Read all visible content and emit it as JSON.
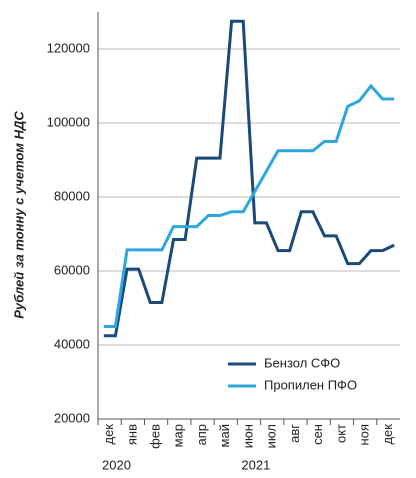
{
  "chart_data": {
    "type": "line",
    "y_label": "Рублей за тонну с учетом НДС",
    "categories": [
      "дек",
      null,
      "янв",
      null,
      "фев",
      null,
      "мар",
      null,
      "апр",
      null,
      "май",
      null,
      "июн",
      null,
      "июл",
      null,
      "авг",
      null,
      "сен",
      null,
      "окт",
      null,
      "ноя",
      null,
      "дек",
      null
    ],
    "years": [
      "2020",
      "2021"
    ],
    "series": [
      {
        "name": "Бензол СФО",
        "color": "#1b4a78",
        "values": [
          42500,
          42500,
          60500,
          60500,
          51500,
          51500,
          68500,
          68500,
          90500,
          90500,
          90500,
          127500,
          127500,
          73000,
          73000,
          65500,
          65500,
          76000,
          76000,
          69500,
          69500,
          62000,
          62000,
          65500,
          65500,
          67000
        ]
      },
      {
        "name": "Пропилен ПФО",
        "color": "#2ea7df",
        "values": [
          45000,
          45000,
          65700,
          65700,
          65700,
          65700,
          72000,
          72000,
          72000,
          75000,
          75000,
          76000,
          76000,
          81500,
          87000,
          92500,
          92500,
          92500,
          92500,
          95000,
          95000,
          104500,
          106000,
          110000,
          106500,
          106500
        ]
      }
    ],
    "ylim": [
      20000,
      130000
    ],
    "yticks": [
      20000,
      40000,
      60000,
      80000,
      100000,
      120000
    ],
    "grid": true,
    "legend": "lower right"
  }
}
